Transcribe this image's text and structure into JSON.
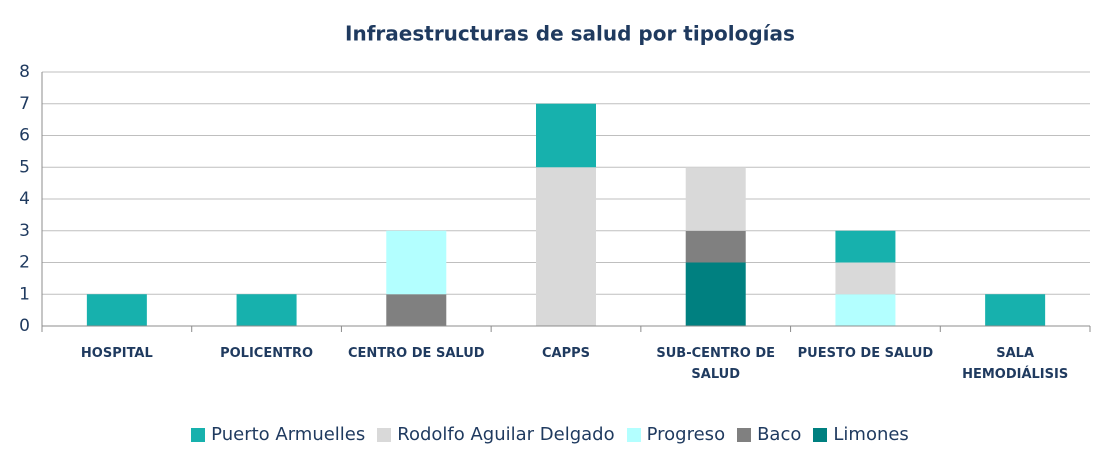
{
  "chart_data": {
    "type": "stacked_bar",
    "title": "Infraestructuras de salud por tipologías",
    "categories": [
      "HOSPITAL",
      "POLICENTRO",
      "CENTRO DE SALUD",
      "CAPPS",
      "SUB-CENTRO DE SALUD",
      "PUESTO DE SALUD",
      "SALA HEMODIÁLISIS"
    ],
    "series": [
      {
        "name": "Puerto Armuelles",
        "color": "#17b1ad",
        "values": [
          1,
          1,
          0,
          2,
          0,
          1,
          1
        ]
      },
      {
        "name": "Rodolfo Aguilar Delgado",
        "color": "#d9d9d9",
        "values": [
          0,
          0,
          0,
          5,
          2,
          1,
          0
        ]
      },
      {
        "name": "Progreso",
        "color": "#b3ffff",
        "values": [
          0,
          0,
          2,
          0,
          0,
          1,
          0
        ]
      },
      {
        "name": "Baco",
        "color": "#808080",
        "values": [
          0,
          0,
          1,
          0,
          1,
          0,
          0
        ]
      },
      {
        "name": "Limones",
        "color": "#008080",
        "values": [
          0,
          0,
          0,
          0,
          2,
          0,
          0
        ]
      }
    ],
    "ylim": [
      0,
      8
    ],
    "yticks": [
      0,
      1,
      2,
      3,
      4,
      5,
      6,
      7,
      8
    ],
    "grid": true,
    "legend": "bottom"
  }
}
